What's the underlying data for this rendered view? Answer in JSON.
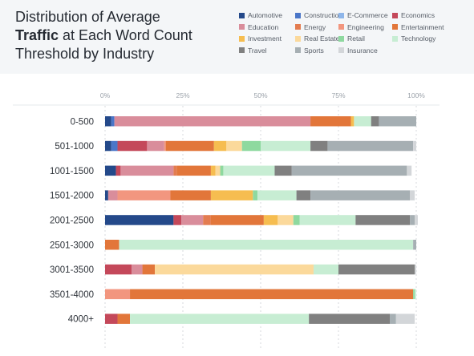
{
  "title": {
    "line1": "Distribution of Average",
    "line2_bold": "Traffic",
    "line2_rest": " at Each Word Count",
    "line3": "Threshold by Industry"
  },
  "chart_data": {
    "type": "bar",
    "orientation": "horizontal",
    "stacked": true,
    "title": "Distribution of Average Traffic at Each Word Count Threshold by Industry",
    "xlim": [
      0,
      100
    ],
    "x_ticks": [
      "0%",
      "25%",
      "50%",
      "75%",
      "100%"
    ],
    "legend_position": "top-right",
    "grid": "vertical-dashed",
    "categories": [
      "0-500",
      "501-1000",
      "1001-1500",
      "1501-2000",
      "2001-2500",
      "2501-3000",
      "3001-3500",
      "3501-4000",
      "4000+"
    ],
    "series": [
      {
        "name": "Automotive",
        "color": "#24498a",
        "values": [
          2,
          2,
          3.5,
          1,
          22,
          0,
          0,
          0,
          0
        ]
      },
      {
        "name": "Construction",
        "color": "#4a76c8",
        "values": [
          1,
          2,
          0,
          0,
          0,
          0,
          0,
          0,
          0
        ]
      },
      {
        "name": "E-Commerce",
        "color": "#8eb6ea",
        "values": [
          0,
          0,
          0,
          0,
          0,
          0,
          0,
          0,
          0
        ]
      },
      {
        "name": "Economics",
        "color": "#c4485a",
        "values": [
          0,
          9.5,
          1.5,
          0,
          2.5,
          0,
          8.5,
          0,
          4
        ]
      },
      {
        "name": "Education",
        "color": "#d98d9b",
        "values": [
          63,
          5.5,
          17,
          3,
          7,
          0,
          3.5,
          0,
          0
        ]
      },
      {
        "name": "Energy",
        "color": "#e37c50",
        "values": [
          0,
          0,
          1,
          0,
          2.5,
          0,
          0,
          0,
          0
        ]
      },
      {
        "name": "Engineering",
        "color": "#f2967f",
        "values": [
          0,
          0.5,
          0,
          17,
          0,
          0,
          0,
          8,
          0
        ]
      },
      {
        "name": "Entertainment",
        "color": "#e2763a",
        "values": [
          13,
          15.5,
          11,
          13,
          17,
          4.5,
          4,
          91,
          4
        ]
      },
      {
        "name": "Investment",
        "color": "#f6bd50",
        "values": [
          1,
          4,
          1.5,
          13.5,
          4.5,
          0,
          0,
          0,
          0
        ]
      },
      {
        "name": "Real Estate",
        "color": "#fbd99b",
        "values": [
          0,
          5,
          1.5,
          0,
          5,
          0,
          51,
          0,
          0
        ]
      },
      {
        "name": "Retail",
        "color": "#8ed99f",
        "values": [
          0,
          6,
          1,
          1.5,
          2,
          0,
          0,
          0.5,
          0
        ]
      },
      {
        "name": "Technology",
        "color": "#c7edd3",
        "values": [
          5.5,
          16,
          16.5,
          12.5,
          18,
          94.5,
          8,
          0.5,
          57.5
        ]
      },
      {
        "name": "Travel",
        "color": "#808080",
        "values": [
          2.5,
          5.5,
          5.5,
          4.5,
          17.5,
          0,
          24.5,
          0,
          26
        ]
      },
      {
        "name": "Sports",
        "color": "#a6afb3",
        "values": [
          12,
          27.5,
          37,
          32,
          1.5,
          1,
          0,
          0,
          2
        ]
      },
      {
        "name": "Insurance",
        "color": "#d3d6d9",
        "values": [
          0,
          1,
          1.5,
          1.5,
          1,
          0,
          0.5,
          0,
          6
        ]
      }
    ]
  }
}
